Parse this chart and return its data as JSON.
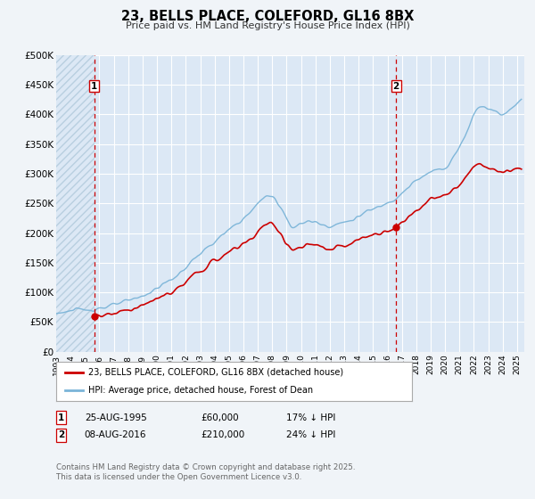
{
  "title": "23, BELLS PLACE, COLEFORD, GL16 8BX",
  "subtitle": "Price paid vs. HM Land Registry's House Price Index (HPI)",
  "bg_color": "#f0f4f8",
  "plot_bg_color": "#dce8f5",
  "grid_color": "#ffffff",
  "hpi_color": "#7ab4d8",
  "price_color": "#cc0000",
  "marker_color": "#cc0000",
  "xmin": 1993.0,
  "xmax": 2025.5,
  "ymin": 0,
  "ymax": 500000,
  "yticks": [
    0,
    50000,
    100000,
    150000,
    200000,
    250000,
    300000,
    350000,
    400000,
    450000,
    500000
  ],
  "ytick_labels": [
    "£0",
    "£50K",
    "£100K",
    "£150K",
    "£200K",
    "£250K",
    "£300K",
    "£350K",
    "£400K",
    "£450K",
    "£500K"
  ],
  "xtick_years": [
    1993,
    1994,
    1995,
    1996,
    1997,
    1998,
    1999,
    2000,
    2001,
    2002,
    2003,
    2004,
    2005,
    2006,
    2007,
    2008,
    2009,
    2010,
    2011,
    2012,
    2013,
    2014,
    2015,
    2016,
    2017,
    2018,
    2019,
    2020,
    2021,
    2022,
    2023,
    2024,
    2025
  ],
  "transaction1_x": 1995.64,
  "transaction1_y": 60000,
  "transaction2_x": 2016.6,
  "transaction2_y": 210000,
  "transaction1_date": "25-AUG-1995",
  "transaction1_price": "£60,000",
  "transaction1_hpi": "17% ↓ HPI",
  "transaction2_date": "08-AUG-2016",
  "transaction2_price": "£210,000",
  "transaction2_hpi": "24% ↓ HPI",
  "legend_line1": "23, BELLS PLACE, COLEFORD, GL16 8BX (detached house)",
  "legend_line2": "HPI: Average price, detached house, Forest of Dean",
  "footer": "Contains HM Land Registry data © Crown copyright and database right 2025.\nThis data is licensed under the Open Government Licence v3.0."
}
